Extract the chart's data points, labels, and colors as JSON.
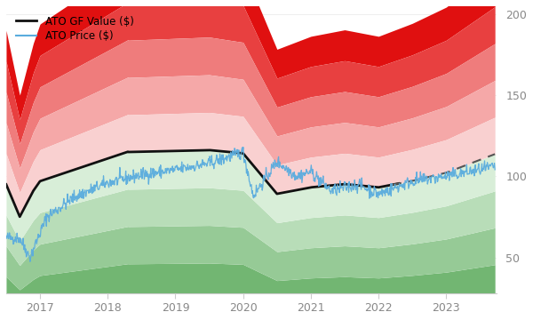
{
  "legend_gf": "ATO GF Value ($)",
  "legend_price": "ATO Price ($)",
  "xlim_start": 2016.5,
  "xlim_end": 2023.75,
  "ylim": [
    28,
    205
  ],
  "yticks": [
    50,
    100,
    150,
    200
  ],
  "xticks": [
    2017,
    2018,
    2019,
    2020,
    2021,
    2022,
    2023
  ],
  "gf_value_color": "#111111",
  "price_color": "#5aacde",
  "dashed_future_color": "#555555",
  "band_colors_above": [
    "#f9d0d0",
    "#f5a8a8",
    "#ef7c7c",
    "#e84040",
    "#e01010"
  ],
  "band_colors_below": [
    "#d8eed8",
    "#b8ddb8",
    "#96ca96",
    "#72b672",
    "#4da04d"
  ]
}
